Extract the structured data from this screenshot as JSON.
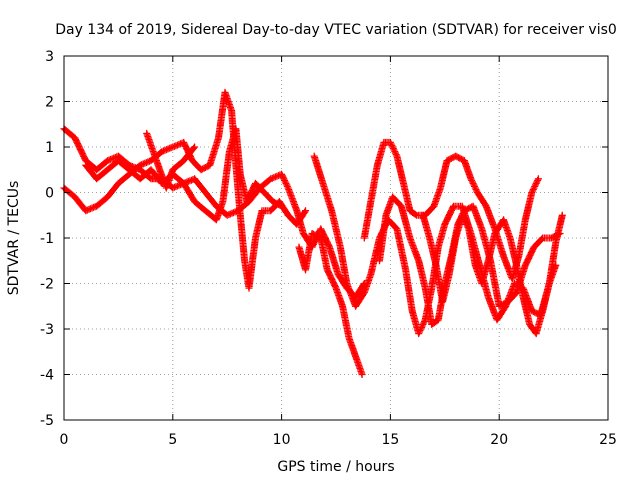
{
  "chart_data": {
    "type": "scatter",
    "title": "Day 134 of 2019, Sidereal Day-to-day VTEC variation (SDTVAR) for receiver vis0",
    "xlabel": "GPS time / hours",
    "ylabel": "SDTVAR / TECUs",
    "xlim": [
      0,
      25
    ],
    "ylim": [
      -5,
      3
    ],
    "xticks": [
      "0",
      "5",
      "10",
      "15",
      "20",
      "25"
    ],
    "yticks": [
      "3",
      "2",
      "1",
      "0",
      "-1",
      "-2",
      "-3",
      "-4",
      "-5"
    ],
    "grid": true,
    "marker": "+",
    "color": "#ff0000",
    "series": [
      {
        "name": "s1",
        "points": [
          [
            0,
            1.4
          ],
          [
            0.5,
            1.2
          ],
          [
            1,
            0.7
          ],
          [
            1.5,
            0.5
          ],
          [
            2,
            0.7
          ],
          [
            2.5,
            0.8
          ],
          [
            3,
            0.6
          ],
          [
            3.5,
            0.5
          ],
          [
            4,
            0.3
          ],
          [
            4.5,
            0.3
          ],
          [
            5,
            0.1
          ],
          [
            5.5,
            0.2
          ],
          [
            6,
            0.3
          ],
          [
            6.5,
            0
          ],
          [
            7,
            -0.3
          ],
          [
            7.5,
            -0.5
          ],
          [
            8,
            -0.4
          ],
          [
            8.5,
            -0.2
          ],
          [
            9,
            0.1
          ],
          [
            9.5,
            0.3
          ],
          [
            10,
            0.4
          ],
          [
            10.3,
            0.1
          ],
          [
            10.7,
            -0.4
          ],
          [
            11,
            -0.9
          ],
          [
            11.4,
            -1.2
          ],
          [
            11.8,
            -0.8
          ],
          [
            12.2,
            -1.2
          ],
          [
            12.6,
            -1.8
          ],
          [
            13,
            -2.1
          ],
          [
            13.4,
            -2.3
          ],
          [
            13.8,
            -2.0
          ]
        ]
      },
      {
        "name": "s2",
        "points": [
          [
            0,
            0.1
          ],
          [
            0.5,
            -0.1
          ],
          [
            1,
            -0.4
          ],
          [
            1.5,
            -0.3
          ],
          [
            2,
            -0.1
          ],
          [
            2.5,
            0.2
          ],
          [
            3,
            0.4
          ],
          [
            3.5,
            0.6
          ],
          [
            4,
            0.7
          ],
          [
            4.5,
            0.9
          ],
          [
            5,
            1.0
          ],
          [
            5.5,
            1.1
          ],
          [
            5.9,
            0.7
          ],
          [
            6.3,
            0.5
          ],
          [
            6.7,
            0.6
          ],
          [
            7.1,
            1.2
          ],
          [
            7.4,
            2.2
          ],
          [
            7.7,
            1.8
          ],
          [
            7.9,
            0.6
          ],
          [
            8.1,
            -0.5
          ],
          [
            8.3,
            -1.5
          ],
          [
            8.5,
            -2.1
          ],
          [
            8.8,
            -1.0
          ],
          [
            9.1,
            -0.4
          ],
          [
            9.5,
            -0.4
          ],
          [
            9.9,
            -0.2
          ],
          [
            10.3,
            -0.5
          ],
          [
            10.7,
            -0.7
          ],
          [
            11.1,
            -0.4
          ]
        ]
      },
      {
        "name": "s3",
        "points": [
          [
            1,
            0.6
          ],
          [
            1.5,
            0.3
          ],
          [
            2,
            0.5
          ],
          [
            2.5,
            0.7
          ],
          [
            3,
            0.5
          ],
          [
            3.5,
            0.3
          ],
          [
            4,
            0.5
          ],
          [
            4.5,
            0.2
          ],
          [
            5,
            0.4
          ],
          [
            5.5,
            0.2
          ],
          [
            6,
            -0.2
          ],
          [
            6.5,
            -0.4
          ],
          [
            7,
            -0.6
          ],
          [
            7.3,
            -0.2
          ],
          [
            7.6,
            0.9
          ],
          [
            7.9,
            1.4
          ],
          [
            8.1,
            0.4
          ],
          [
            8.4,
            -0.2
          ],
          [
            8.8,
            0.2
          ],
          [
            9.2,
            0
          ],
          [
            9.6,
            -0.2
          ],
          [
            10,
            -0.3
          ]
        ]
      },
      {
        "name": "s4",
        "points": [
          [
            3.8,
            1.3
          ],
          [
            4.1,
            0.9
          ],
          [
            4.4,
            0.5
          ],
          [
            4.7,
            0.1
          ],
          [
            5,
            0.5
          ],
          [
            5.5,
            0.7
          ],
          [
            6,
            1.0
          ]
        ]
      },
      {
        "name": "s5",
        "points": [
          [
            10.8,
            -1.2
          ],
          [
            11.1,
            -1.7
          ],
          [
            11.4,
            -0.9
          ],
          [
            11.8,
            -1.0
          ],
          [
            12.1,
            -1.7
          ],
          [
            12.5,
            -2.1
          ],
          [
            12.8,
            -2.5
          ],
          [
            13.1,
            -3.2
          ],
          [
            13.4,
            -3.6
          ],
          [
            13.7,
            -4.0
          ]
        ]
      },
      {
        "name": "s6",
        "points": [
          [
            11.5,
            0.8
          ],
          [
            11.9,
            0.2
          ],
          [
            12.3,
            -0.4
          ],
          [
            12.7,
            -1.2
          ],
          [
            13.0,
            -2.0
          ],
          [
            13.4,
            -2.5
          ],
          [
            13.8,
            -2.2
          ],
          [
            14.1,
            -1.8
          ],
          [
            14.5,
            -1.0
          ],
          [
            14.9,
            -0.6
          ],
          [
            15.3,
            -0.8
          ],
          [
            15.7,
            -1.7
          ],
          [
            16.0,
            -2.6
          ],
          [
            16.3,
            -3.1
          ],
          [
            16.6,
            -2.8
          ],
          [
            16.9,
            -2.1
          ],
          [
            17.2,
            -1.2
          ],
          [
            17.5,
            -0.7
          ],
          [
            17.9,
            -0.3
          ],
          [
            18.3,
            -0.3
          ],
          [
            18.7,
            -0.9
          ],
          [
            19.1,
            -1.6
          ],
          [
            19.5,
            -2.3
          ],
          [
            19.9,
            -2.8
          ],
          [
            20.3,
            -2.5
          ],
          [
            20.7,
            -2.0
          ],
          [
            21.1,
            -2.1
          ],
          [
            21.5,
            -2.6
          ],
          [
            21.9,
            -2.7
          ],
          [
            22.3,
            -2.0
          ],
          [
            22.6,
            -1.1
          ],
          [
            22.9,
            -0.5
          ]
        ]
      },
      {
        "name": "s7",
        "points": [
          [
            13.8,
            -1.0
          ],
          [
            14.1,
            -0.2
          ],
          [
            14.4,
            0.6
          ],
          [
            14.7,
            1.1
          ],
          [
            15.0,
            1.1
          ],
          [
            15.3,
            0.8
          ],
          [
            15.6,
            0.2
          ],
          [
            15.9,
            -0.4
          ],
          [
            16.2,
            -0.5
          ],
          [
            16.6,
            -0.5
          ],
          [
            17.0,
            -0.3
          ],
          [
            17.3,
            0.1
          ],
          [
            17.6,
            0.7
          ],
          [
            18.0,
            0.8
          ],
          [
            18.4,
            0.7
          ],
          [
            18.7,
            0.3
          ],
          [
            19.0,
            0
          ],
          [
            19.4,
            -0.3
          ],
          [
            19.8,
            -0.8
          ],
          [
            20.2,
            -1.4
          ],
          [
            20.6,
            -1.9
          ],
          [
            20.9,
            -1.4
          ],
          [
            21.2,
            -0.6
          ],
          [
            21.5,
            0
          ],
          [
            21.8,
            0.3
          ]
        ]
      },
      {
        "name": "s8",
        "points": [
          [
            14.5,
            -1.5
          ],
          [
            14.8,
            -0.5
          ],
          [
            15.1,
            -0.1
          ],
          [
            15.5,
            -0.3
          ],
          [
            15.9,
            -1.0
          ],
          [
            16.3,
            -1.5
          ],
          [
            16.6,
            -2.1
          ],
          [
            16.9,
            -2.9
          ],
          [
            17.2,
            -2.8
          ],
          [
            17.5,
            -2.0
          ],
          [
            17.8,
            -1.4
          ],
          [
            18.1,
            -0.7
          ],
          [
            18.4,
            -0.4
          ],
          [
            18.8,
            -0.3
          ],
          [
            19.2,
            -0.8
          ],
          [
            19.6,
            -1.5
          ],
          [
            20.0,
            -2.5
          ],
          [
            20.4,
            -2.4
          ],
          [
            20.8,
            -2.2
          ],
          [
            21.2,
            -1.6
          ],
          [
            21.6,
            -1.2
          ],
          [
            22.0,
            -1.0
          ],
          [
            22.4,
            -1.0
          ],
          [
            22.8,
            -0.9
          ]
        ]
      },
      {
        "name": "s9",
        "points": [
          [
            16.5,
            -0.5
          ],
          [
            16.8,
            -1.0
          ],
          [
            17.1,
            -1.6
          ],
          [
            17.4,
            -2.4
          ],
          [
            17.7,
            -1.8
          ],
          [
            18.0,
            -1.0
          ],
          [
            18.3,
            -0.5
          ],
          [
            18.6,
            -0.8
          ],
          [
            18.9,
            -1.6
          ],
          [
            19.2,
            -2.0
          ],
          [
            19.5,
            -1.5
          ],
          [
            19.8,
            -0.9
          ],
          [
            20.2,
            -0.6
          ],
          [
            20.5,
            -1.0
          ],
          [
            20.8,
            -1.6
          ],
          [
            21.1,
            -2.3
          ],
          [
            21.4,
            -2.9
          ],
          [
            21.7,
            -3.1
          ],
          [
            22.0,
            -2.6
          ],
          [
            22.3,
            -2.0
          ],
          [
            22.6,
            -1.6
          ]
        ]
      }
    ]
  }
}
